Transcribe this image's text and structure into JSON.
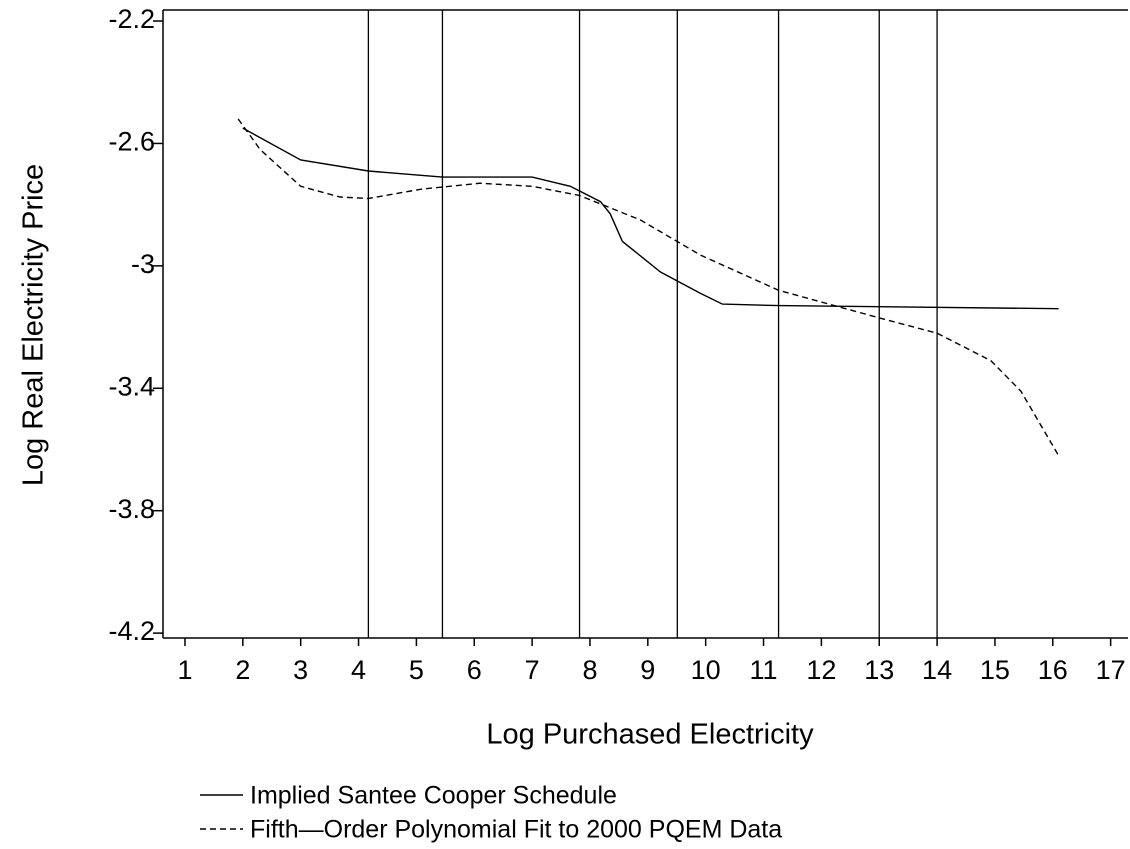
{
  "chart_data": {
    "type": "line",
    "x_label": "Log Purchased Electricity",
    "y_label": "Log Real Electricity Price",
    "xlim": [
      0.62,
      17.3
    ],
    "ylim": [
      -4.216,
      -2.164
    ],
    "xticks": [
      1,
      2,
      3,
      4,
      5,
      6,
      7,
      8,
      9,
      10,
      11,
      12,
      13,
      14,
      15,
      16,
      17
    ],
    "yticks": [
      -2.2,
      -2.6,
      -3.0,
      -3.4,
      -3.8,
      -4.2
    ],
    "reference_lines": [
      4.17,
      5.45,
      7.82,
      9.51,
      11.26,
      13.0,
      14.0
    ],
    "series": [
      {
        "name": "Implied Santee Cooper Schedule",
        "color": "#000000",
        "dash": "none",
        "x": [
          2,
          3,
          4.17,
          5.45,
          7,
          7.66,
          8.18,
          8.35,
          8.56,
          9.22,
          9.91,
          10.29,
          11.26,
          16.1
        ],
        "values": [
          -2.55,
          -2.654,
          -2.69,
          -2.71,
          -2.71,
          -2.74,
          -2.79,
          -2.83,
          -2.92,
          -3.02,
          -3.09,
          -3.125,
          -3.13,
          -3.14
        ]
      },
      {
        "name": "Fifth—Order Polynomial Fit to 2000 PQEM Data",
        "color": "#000000",
        "dash": "6 4",
        "x": [
          1.92,
          2.3,
          3,
          3.68,
          4.17,
          5.07,
          6.1,
          7,
          7.82,
          8.87,
          9.91,
          11.26,
          13,
          14,
          14.93,
          15.45,
          16.1
        ],
        "values": [
          -2.52,
          -2.62,
          -2.74,
          -2.775,
          -2.78,
          -2.75,
          -2.73,
          -2.74,
          -2.77,
          -2.85,
          -2.965,
          -3.08,
          -3.17,
          -3.22,
          -3.31,
          -3.41,
          -3.62
        ]
      }
    ]
  }
}
